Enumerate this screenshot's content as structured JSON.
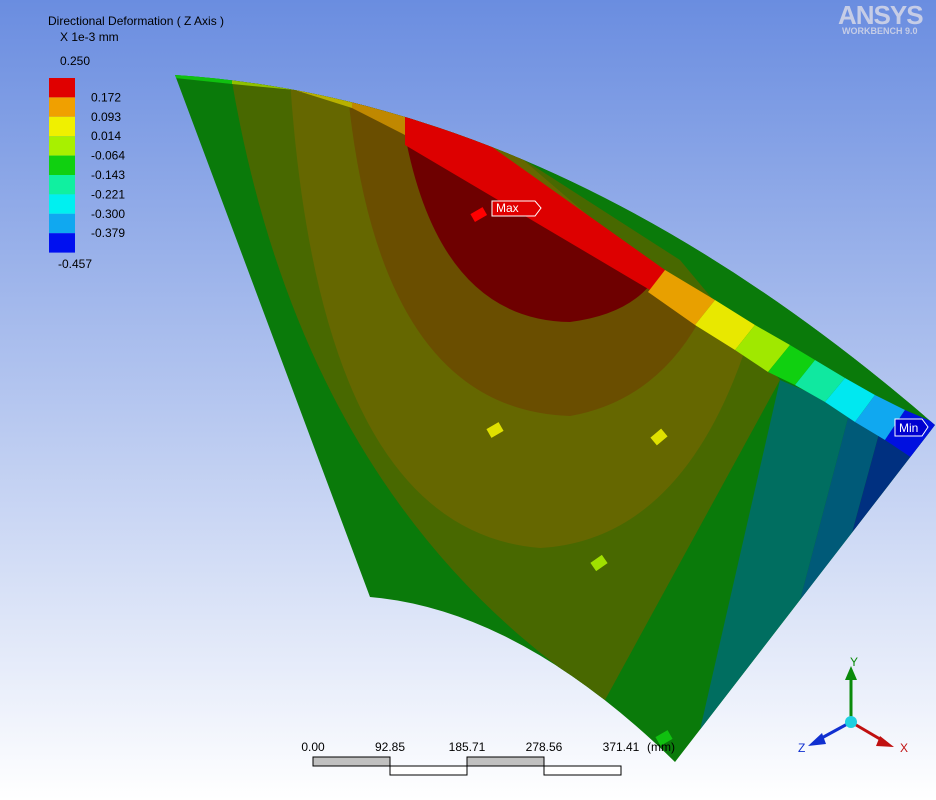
{
  "legend": {
    "title": "Directional Deformation ( Z Axis )",
    "unit": "X 1e-3 mm",
    "levels": [
      "0.250",
      "0.172",
      "0.093",
      "0.014",
      "-0.064",
      "-0.143",
      "-0.221",
      "-0.300",
      "-0.379",
      "-0.457"
    ]
  },
  "logo": {
    "name": "ANSYS",
    "version": "WORKBENCH 9.0"
  },
  "probes": {
    "max": "Max",
    "min": "Min"
  },
  "scale_bar": {
    "labels": [
      "0.00",
      "92.85",
      "185.71",
      "278.56",
      "371.41"
    ],
    "unit": "(mm)"
  },
  "triad": {
    "x": "X",
    "y": "Y",
    "z": "Z"
  }
}
